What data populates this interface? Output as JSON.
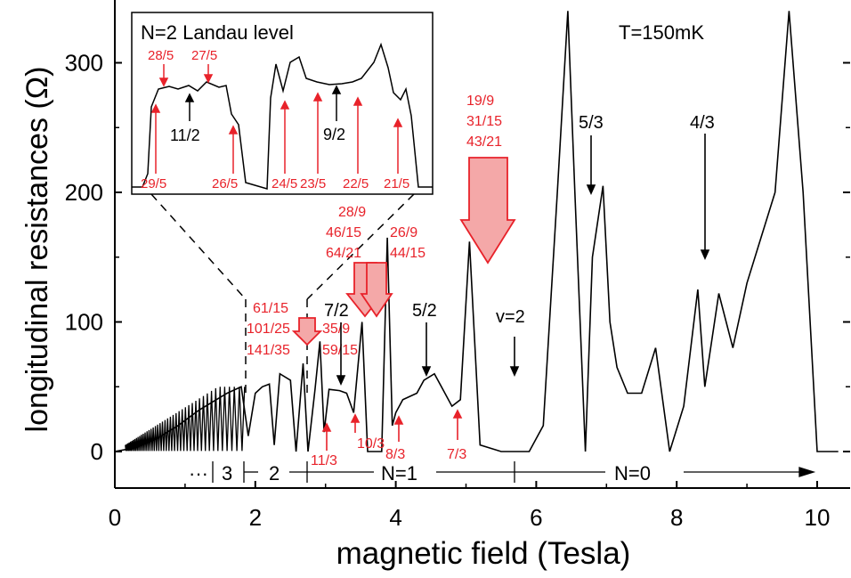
{
  "chart_data": {
    "type": "line",
    "title": "",
    "xlabel": "magnetic field (Tesla)",
    "ylabel": "longitudinal resistances (Ω)",
    "xlim": [
      0,
      10.5
    ],
    "ylim": [
      -30,
      350
    ],
    "xticks": [
      "0",
      "2",
      "4",
      "6",
      "8",
      "10"
    ],
    "yticks": [
      "0",
      "100",
      "200",
      "300"
    ],
    "temperature_label": "T=150mK",
    "colors": {
      "trace": "#000000",
      "annotation": "#e8222a",
      "big_arrow_fill": "#f4a8a8"
    },
    "series": [
      {
        "values": [
          {
            "x": 0.0,
            "y": 0
          },
          {
            "x": 0.3,
            "y": 3
          },
          {
            "x": 0.6,
            "y": 10
          },
          {
            "x": 0.9,
            "y": 20
          },
          {
            "x": 1.2,
            "y": 32
          },
          {
            "x": 1.6,
            "y": 45
          },
          {
            "x": 1.8,
            "y": 50
          },
          {
            "x": 1.9,
            "y": 12
          },
          {
            "x": 2.0,
            "y": 45
          },
          {
            "x": 2.1,
            "y": 50
          },
          {
            "x": 2.2,
            "y": 52
          },
          {
            "x": 2.27,
            "y": 5
          },
          {
            "x": 2.35,
            "y": 60
          },
          {
            "x": 2.5,
            "y": 55
          },
          {
            "x": 2.58,
            "y": 0
          },
          {
            "x": 2.68,
            "y": 68
          },
          {
            "x": 2.75,
            "y": 0
          },
          {
            "x": 2.85,
            "y": 48
          },
          {
            "x": 2.92,
            "y": 85
          },
          {
            "x": 2.98,
            "y": 15
          },
          {
            "x": 3.05,
            "y": 48
          },
          {
            "x": 3.2,
            "y": 47
          },
          {
            "x": 3.3,
            "y": 45
          },
          {
            "x": 3.4,
            "y": 30
          },
          {
            "x": 3.52,
            "y": 100
          },
          {
            "x": 3.6,
            "y": 0
          },
          {
            "x": 3.8,
            "y": 0
          },
          {
            "x": 3.88,
            "y": 165
          },
          {
            "x": 3.95,
            "y": 20
          },
          {
            "x": 4.0,
            "y": 30
          },
          {
            "x": 4.1,
            "y": 40
          },
          {
            "x": 4.3,
            "y": 45
          },
          {
            "x": 4.4,
            "y": 55
          },
          {
            "x": 4.55,
            "y": 60
          },
          {
            "x": 4.65,
            "y": 50
          },
          {
            "x": 4.8,
            "y": 35
          },
          {
            "x": 4.92,
            "y": 40
          },
          {
            "x": 5.05,
            "y": 162
          },
          {
            "x": 5.2,
            "y": 5
          },
          {
            "x": 5.5,
            "y": 0
          },
          {
            "x": 5.9,
            "y": 0
          },
          {
            "x": 6.1,
            "y": 20
          },
          {
            "x": 6.3,
            "y": 200
          },
          {
            "x": 6.45,
            "y": 340
          },
          {
            "x": 6.55,
            "y": 200
          },
          {
            "x": 6.7,
            "y": 0
          },
          {
            "x": 6.8,
            "y": 150
          },
          {
            "x": 6.95,
            "y": 205
          },
          {
            "x": 7.05,
            "y": 100
          },
          {
            "x": 7.15,
            "y": 65
          },
          {
            "x": 7.3,
            "y": 45
          },
          {
            "x": 7.5,
            "y": 45
          },
          {
            "x": 7.7,
            "y": 80
          },
          {
            "x": 7.9,
            "y": 0
          },
          {
            "x": 8.1,
            "y": 35
          },
          {
            "x": 8.3,
            "y": 125
          },
          {
            "x": 8.4,
            "y": 50
          },
          {
            "x": 8.6,
            "y": 122
          },
          {
            "x": 8.8,
            "y": 80
          },
          {
            "x": 9.0,
            "y": 130
          },
          {
            "x": 9.2,
            "y": 165
          },
          {
            "x": 9.4,
            "y": 200
          },
          {
            "x": 9.6,
            "y": 340
          },
          {
            "x": 9.8,
            "y": 200
          },
          {
            "x": 10.0,
            "y": 0
          },
          {
            "x": 10.3,
            "y": 0
          }
        ]
      }
    ],
    "annotations": {
      "black": [
        "7/2",
        "5/2",
        "v=2",
        "5/3",
        "4/3",
        "11/2",
        "9/2"
      ],
      "red": [
        "61/15",
        "101/25",
        "141/35",
        "35/9",
        "59/15",
        "28/9",
        "46/15",
        "64/21",
        "26/9",
        "44/15",
        "19/9",
        "31/15",
        "43/21",
        "11/3",
        "10/3",
        "8/3",
        "7/3",
        "28/5",
        "27/5",
        "29/5",
        "26/5",
        "24/5",
        "23/5",
        "22/5",
        "21/5"
      ]
    },
    "landau_labels": [
      "···",
      "3",
      "2",
      "N=1",
      "N=0"
    ],
    "inset": {
      "title": "N=2 Landau level"
    }
  }
}
